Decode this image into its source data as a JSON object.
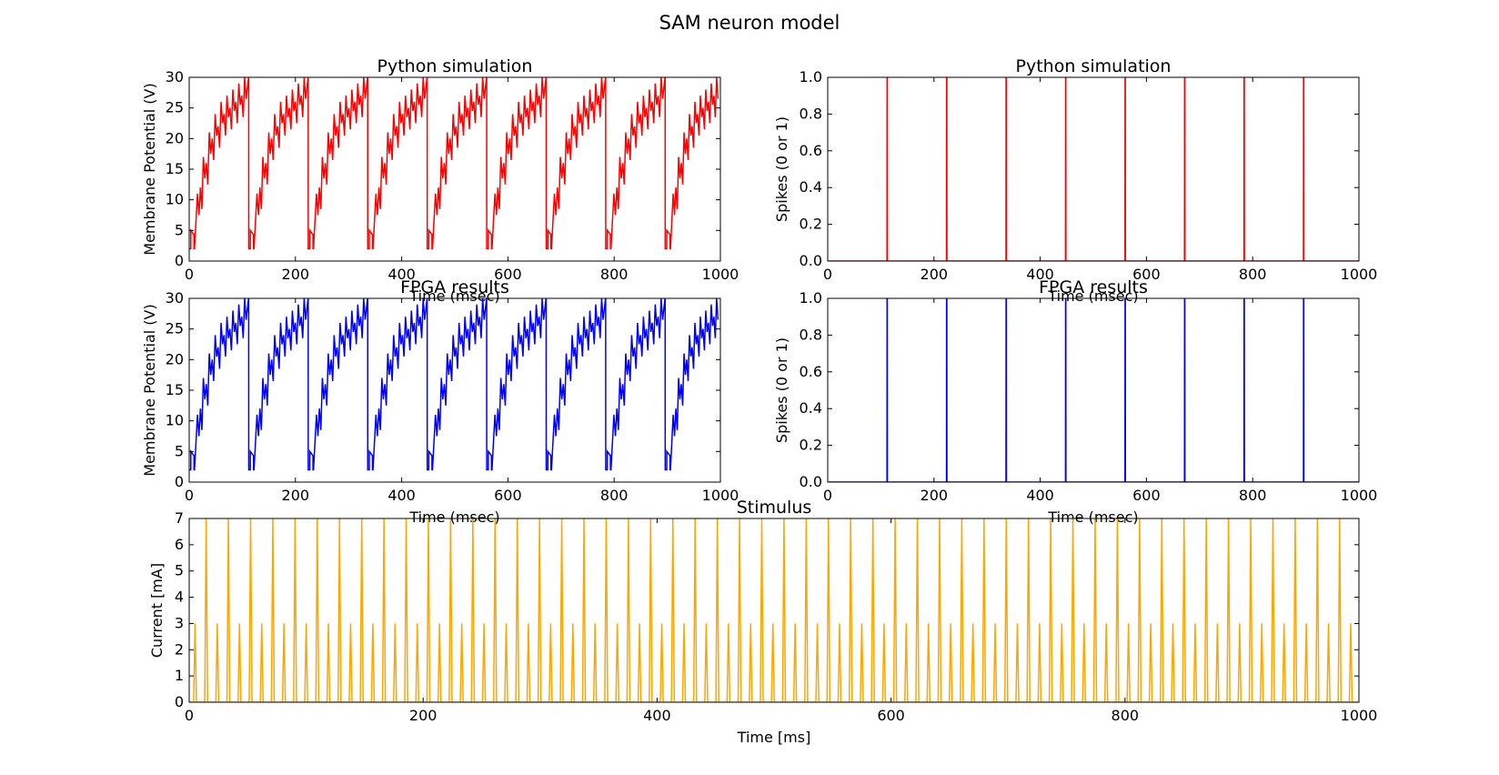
{
  "figure": {
    "title": "SAM neuron model"
  },
  "chart_data": [
    {
      "id": "vm_python",
      "type": "line",
      "title": "Python simulation",
      "xlabel": "Time (msec)",
      "ylabel": "Membrane Potential (V)",
      "xlim": [
        0,
        1000
      ],
      "ylim": [
        0,
        30
      ],
      "xticks": [
        0,
        200,
        400,
        600,
        800,
        1000
      ],
      "yticks": [
        0,
        5,
        10,
        15,
        20,
        25,
        30
      ],
      "grid": false,
      "color": "#ff0000",
      "series": [
        {
          "kind": "sawtooth_membrane",
          "spike_times": [
            112,
            224,
            336,
            448,
            560,
            672,
            784,
            896
          ],
          "reset": 2,
          "threshold": 30,
          "description_values": {
            "first_step": 5,
            "cycle_peak_range": [
              24,
              30
            ]
          }
        }
      ]
    },
    {
      "id": "spikes_python",
      "type": "line",
      "title": "Python simulation",
      "xlabel": "Time (msec)",
      "ylabel": "Spikes (0 or 1)",
      "xlim": [
        0,
        1000
      ],
      "ylim": [
        0,
        1.0
      ],
      "xticks": [
        0,
        200,
        400,
        600,
        800,
        1000
      ],
      "yticks": [
        "0.0",
        "0.2",
        "0.4",
        "0.6",
        "0.8",
        "1.0"
      ],
      "grid": false,
      "color": "#ff0000",
      "series": [
        {
          "kind": "spike_train",
          "spike_times": [
            112,
            224,
            336,
            448,
            560,
            672,
            784,
            896
          ]
        }
      ]
    },
    {
      "id": "vm_fpga",
      "type": "line",
      "title": "FPGA results",
      "xlabel": "Time (msec)",
      "ylabel": "Membrane Potential (V)",
      "xlim": [
        0,
        1000
      ],
      "ylim": [
        0,
        30
      ],
      "xticks": [
        0,
        200,
        400,
        600,
        800,
        1000
      ],
      "yticks": [
        0,
        5,
        10,
        15,
        20,
        25,
        30
      ],
      "grid": false,
      "color": "#0000ff",
      "series": [
        {
          "kind": "sawtooth_membrane",
          "spike_times": [
            112,
            224,
            336,
            448,
            560,
            672,
            784,
            896
          ],
          "reset": 2,
          "threshold": 30,
          "description_values": {
            "first_step": 5,
            "cycle_peak_range": [
              24,
              30
            ]
          }
        }
      ]
    },
    {
      "id": "spikes_fpga",
      "type": "line",
      "title": "FPGA results",
      "xlabel": "Time (msec)",
      "ylabel": "Spikes (0 or 1)",
      "xlim": [
        0,
        1000
      ],
      "ylim": [
        0,
        1.0
      ],
      "xticks": [
        0,
        200,
        400,
        600,
        800,
        1000
      ],
      "yticks": [
        "0.0",
        "0.2",
        "0.4",
        "0.6",
        "0.8",
        "1.0"
      ],
      "grid": false,
      "color": "#0000ff",
      "series": [
        {
          "kind": "spike_train",
          "spike_times": [
            112,
            224,
            336,
            448,
            560,
            672,
            784,
            896
          ]
        }
      ]
    },
    {
      "id": "stimulus",
      "type": "line",
      "title": "Stimulus",
      "xlabel": "Time [ms]",
      "ylabel": "Current [mA]",
      "xlim": [
        0,
        1000
      ],
      "ylim": [
        0,
        7
      ],
      "xticks": [
        0,
        200,
        400,
        600,
        800,
        1000
      ],
      "yticks": [
        0,
        1,
        2,
        3,
        4,
        5,
        6,
        7
      ],
      "grid": false,
      "color": "#ffa500",
      "series": [
        {
          "kind": "pulse_train",
          "pulse_period_ms": 9.5,
          "first_pulse_ms": 5,
          "high_value": 7,
          "low_value": 3,
          "pattern": "alternating high / low pulses returning to 0"
        }
      ]
    }
  ]
}
